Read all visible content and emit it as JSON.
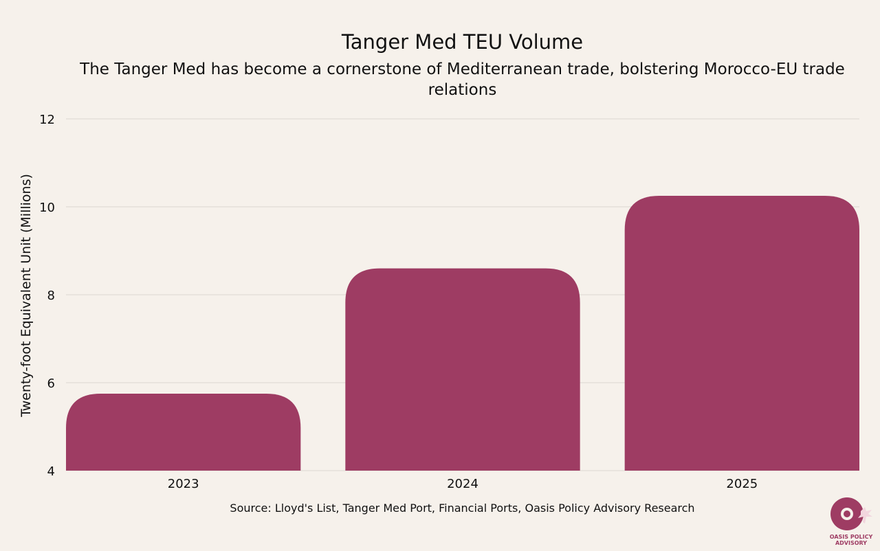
{
  "chart_data": {
    "type": "bar",
    "title": "Tanger Med TEU Volume",
    "subtitle": "The Tanger Med has become a cornerstone of Mediterranean trade, bolstering Morocco-EU trade relations",
    "categories": [
      "2023",
      "2024",
      "2025"
    ],
    "values": [
      5.75,
      8.6,
      10.25
    ],
    "xlabel": "",
    "ylabel": "Twenty-foot Equivalent Unit (Millions)",
    "ylim": [
      4,
      12
    ],
    "yticks": [
      "4",
      "6",
      "8",
      "10",
      "12"
    ],
    "grid": true,
    "source": "Source: Lloyd's List, Tanger Med Port, Financial Ports, Oasis Policy Advisory Research"
  },
  "colors": {
    "bar": "#9e3c63",
    "grid": "#dcd6d0",
    "background": "#f6f1eb"
  },
  "logo": {
    "text_line1": "OASIS POLICY",
    "text_line2": "ADVISORY"
  }
}
